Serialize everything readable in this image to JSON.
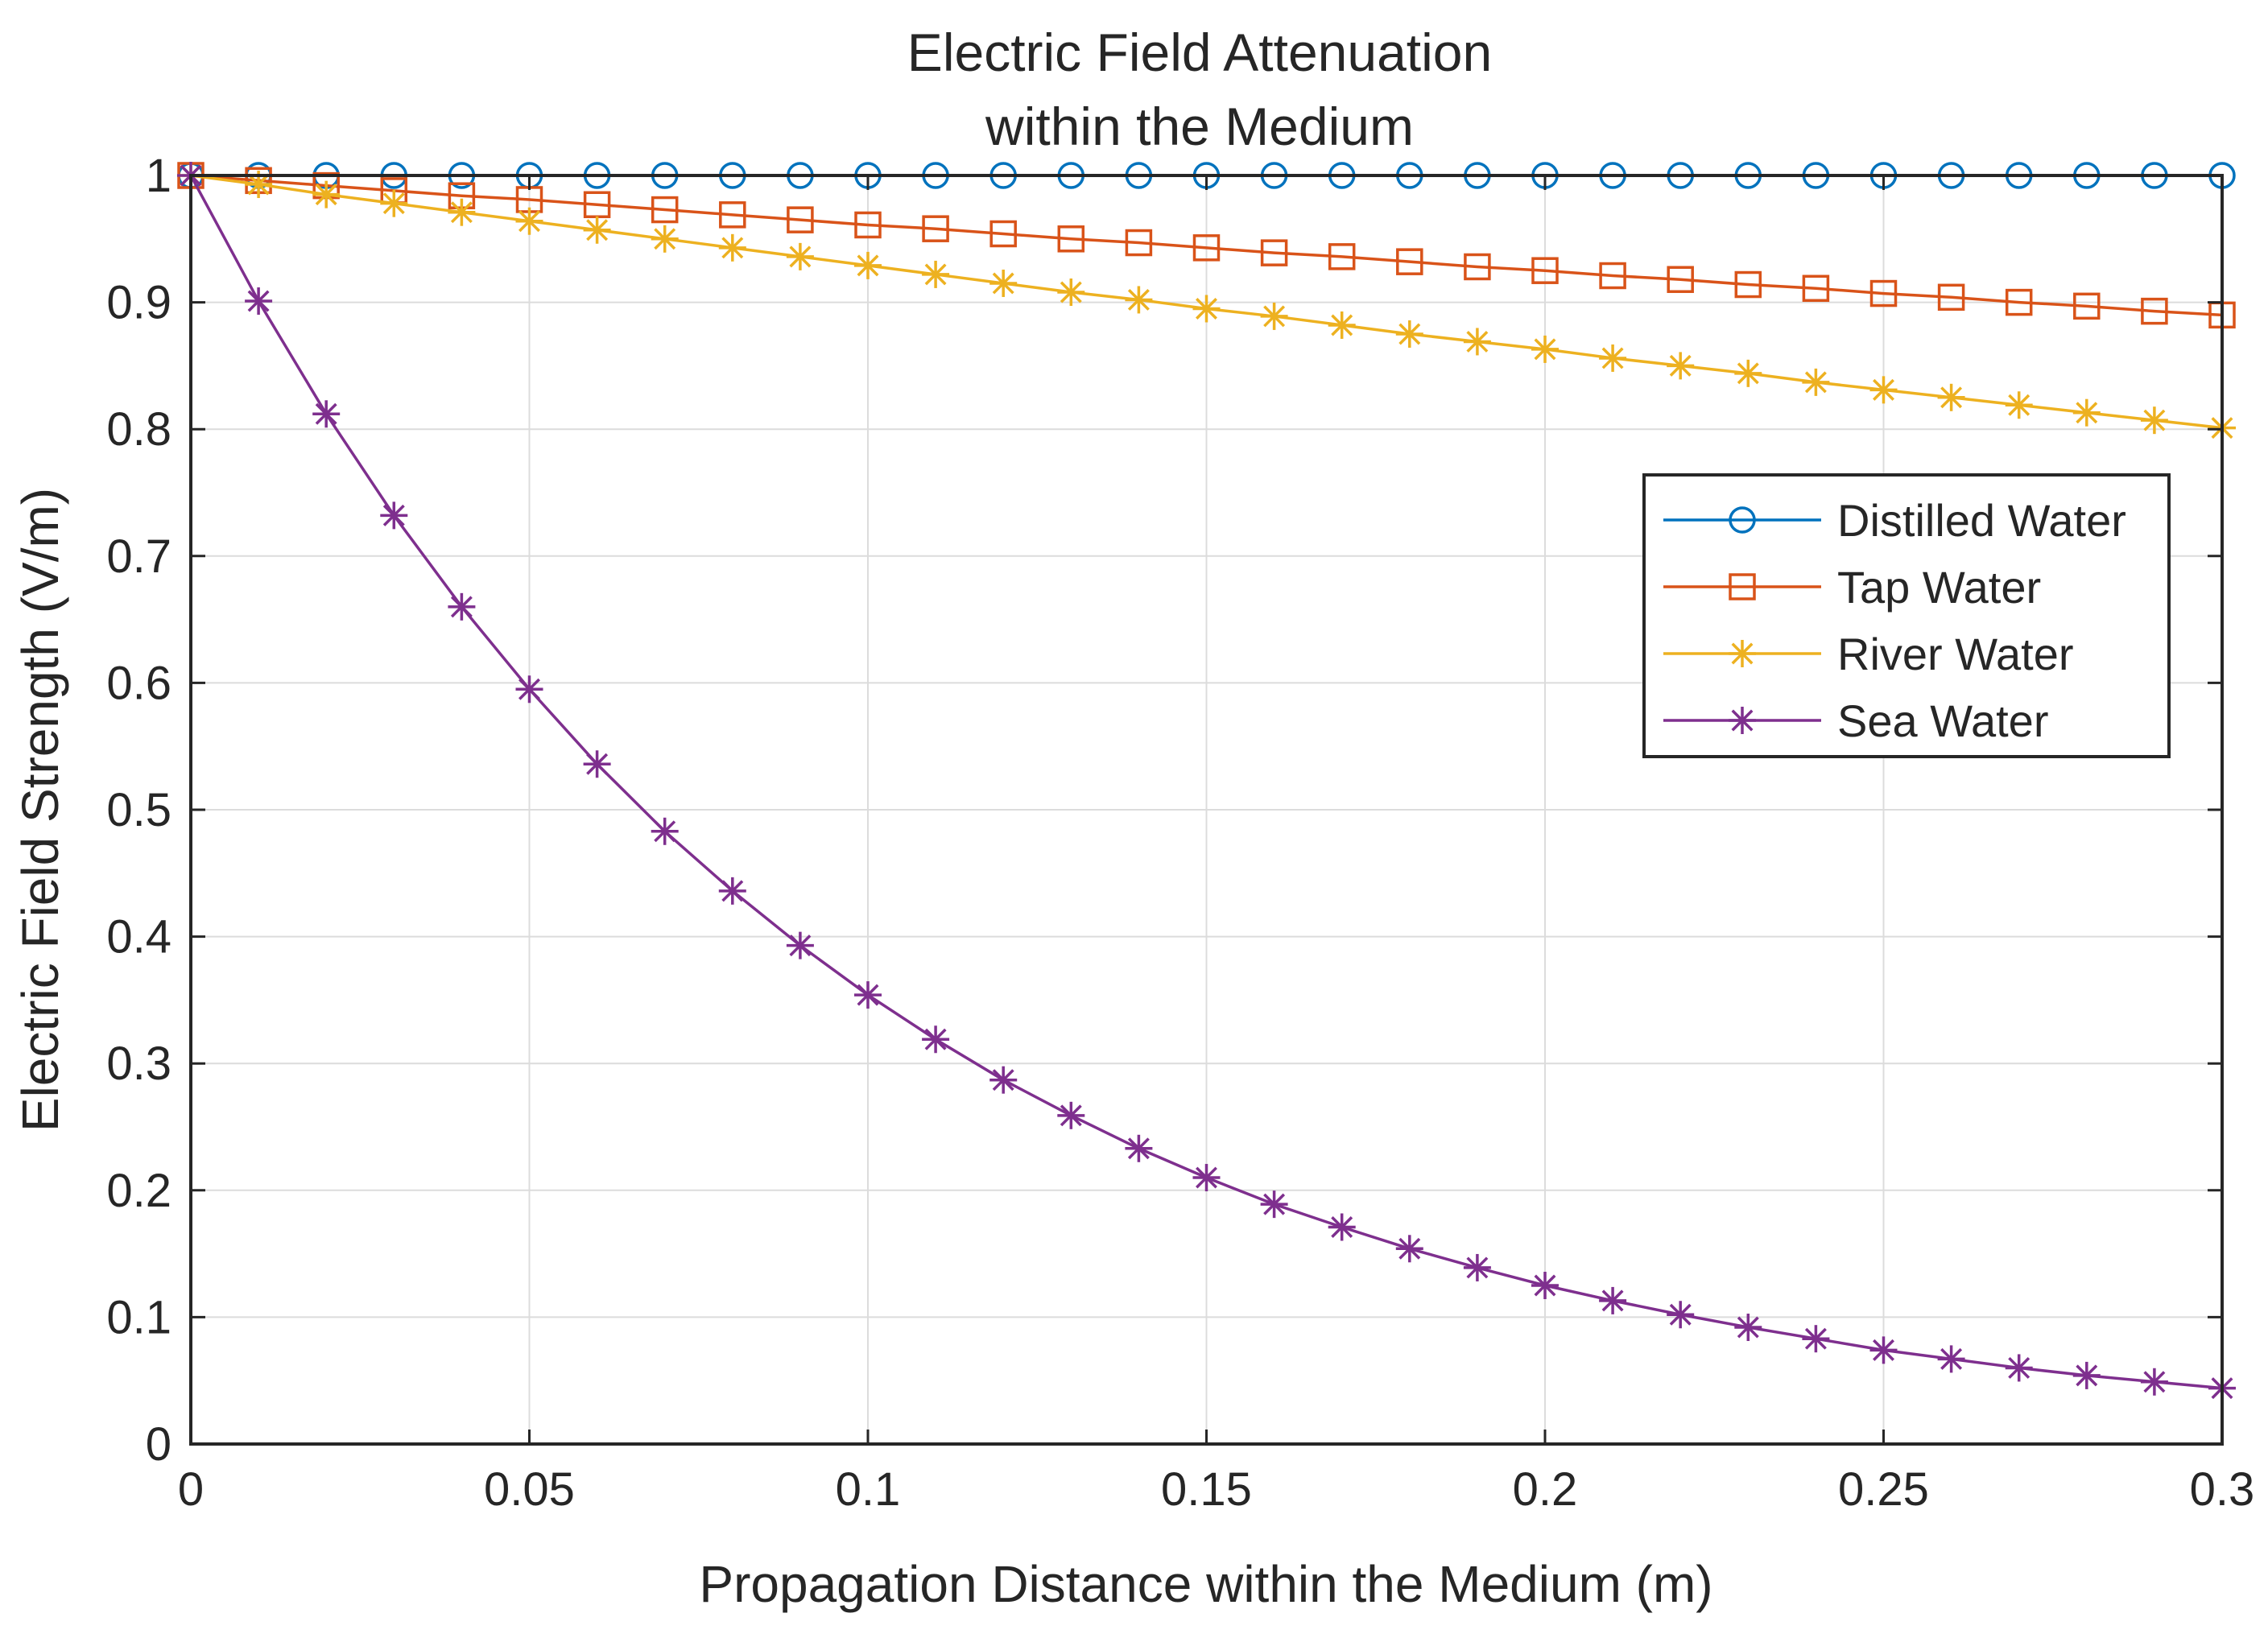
{
  "chart_data": {
    "type": "line",
    "title": [
      "Electric Field Attenuation",
      "within the Medium"
    ],
    "xlabel": "Propagation Distance within the Medium (m)",
    "ylabel": "Electric Field Strength (V/m)",
    "xlim": [
      0,
      0.3
    ],
    "ylim": [
      0,
      1
    ],
    "xticks": [
      "0",
      "0.05",
      "0.1",
      "0.15",
      "0.2",
      "0.25",
      "0.3"
    ],
    "yticks": [
      "0",
      "0.1",
      "0.2",
      "0.3",
      "0.4",
      "0.5",
      "0.6",
      "0.7",
      "0.8",
      "0.9",
      "1"
    ],
    "grid": true,
    "legend_position": "upper-right",
    "x": [
      0,
      0.01,
      0.02,
      0.03,
      0.04,
      0.05,
      0.06,
      0.07,
      0.08,
      0.09,
      0.1,
      0.11,
      0.12,
      0.13,
      0.14,
      0.15,
      0.16,
      0.17,
      0.18,
      0.19,
      0.2,
      0.21,
      0.22,
      0.23,
      0.24,
      0.25,
      0.26,
      0.27,
      0.28,
      0.29,
      0.3
    ],
    "series": [
      {
        "name": "Distilled Water",
        "color": "#0072BD",
        "marker": "circle",
        "values": [
          1,
          1,
          1,
          1,
          1,
          1,
          1,
          1,
          1,
          1,
          1,
          1,
          1,
          1,
          1,
          1,
          1,
          1,
          1,
          1,
          1,
          1,
          1,
          1,
          1,
          1,
          1,
          1,
          1,
          1,
          1
        ]
      },
      {
        "name": "Tap Water",
        "color": "#D95319",
        "marker": "square",
        "values": [
          1,
          0.996,
          0.992,
          0.988,
          0.984,
          0.981,
          0.977,
          0.973,
          0.969,
          0.965,
          0.961,
          0.958,
          0.954,
          0.95,
          0.947,
          0.943,
          0.939,
          0.936,
          0.932,
          0.928,
          0.925,
          0.921,
          0.918,
          0.914,
          0.911,
          0.907,
          0.904,
          0.9,
          0.897,
          0.893,
          0.89
        ]
      },
      {
        "name": "River Water",
        "color": "#EDB120",
        "marker": "asterisk",
        "values": [
          1,
          0.993,
          0.985,
          0.978,
          0.971,
          0.964,
          0.957,
          0.95,
          0.943,
          0.936,
          0.929,
          0.922,
          0.915,
          0.908,
          0.902,
          0.895,
          0.889,
          0.882,
          0.875,
          0.869,
          0.863,
          0.856,
          0.85,
          0.844,
          0.837,
          0.831,
          0.825,
          0.819,
          0.813,
          0.807,
          0.801
        ]
      },
      {
        "name": "Sea Water",
        "color": "#7E2F8E",
        "marker": "asterisk",
        "values": [
          1,
          0.901,
          0.812,
          0.732,
          0.66,
          0.595,
          0.536,
          0.483,
          0.436,
          0.393,
          0.354,
          0.319,
          0.287,
          0.259,
          0.233,
          0.21,
          0.189,
          0.171,
          0.154,
          0.139,
          0.125,
          0.113,
          0.102,
          0.092,
          0.083,
          0.074,
          0.067,
          0.06,
          0.054,
          0.049,
          0.044
        ]
      }
    ]
  }
}
